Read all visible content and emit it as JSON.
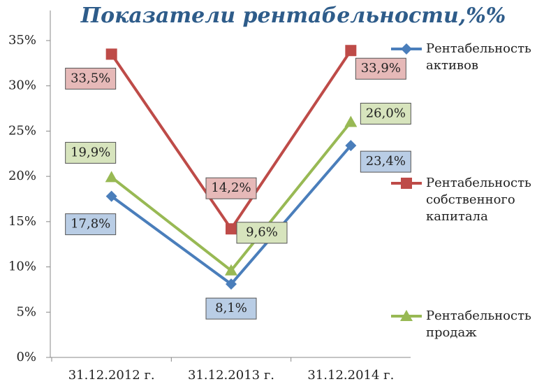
{
  "chart_data": {
    "type": "line",
    "title": "Показатели  рентабельности,%%",
    "categories": [
      "31.12.2012 г.",
      "31.12.2013 г.",
      "31.12.2014 г."
    ],
    "series": [
      {
        "name": "Рентабельность активов",
        "color": "#4a7ebb",
        "marker": "diamond",
        "values": [
          17.8,
          8.1,
          23.4
        ],
        "value_labels": [
          "17,8%",
          "8,1%",
          "23,4%"
        ]
      },
      {
        "name": "Рентабельность собственного капитала",
        "color": "#be4b48",
        "marker": "square",
        "values": [
          33.5,
          14.2,
          33.9
        ],
        "value_labels": [
          "33,5%",
          "14,2%",
          "33,9%"
        ]
      },
      {
        "name": "Рентабельность продаж",
        "color": "#98b954",
        "marker": "triangle",
        "values": [
          19.9,
          9.6,
          26.0
        ],
        "value_labels": [
          "19,9%",
          "9,6%",
          "26,0%"
        ]
      }
    ],
    "ylim": [
      0,
      35
    ],
    "yticks": [
      {
        "value": 0,
        "label": "0%"
      },
      {
        "value": 5,
        "label": "5%"
      },
      {
        "value": 10,
        "label": "10%"
      },
      {
        "value": 15,
        "label": "15%"
      },
      {
        "value": 20,
        "label": "20%"
      },
      {
        "value": 25,
        "label": "25%"
      },
      {
        "value": 30,
        "label": "30%"
      },
      {
        "value": 35,
        "label": "35%"
      }
    ],
    "grid": false,
    "legend": "right"
  }
}
